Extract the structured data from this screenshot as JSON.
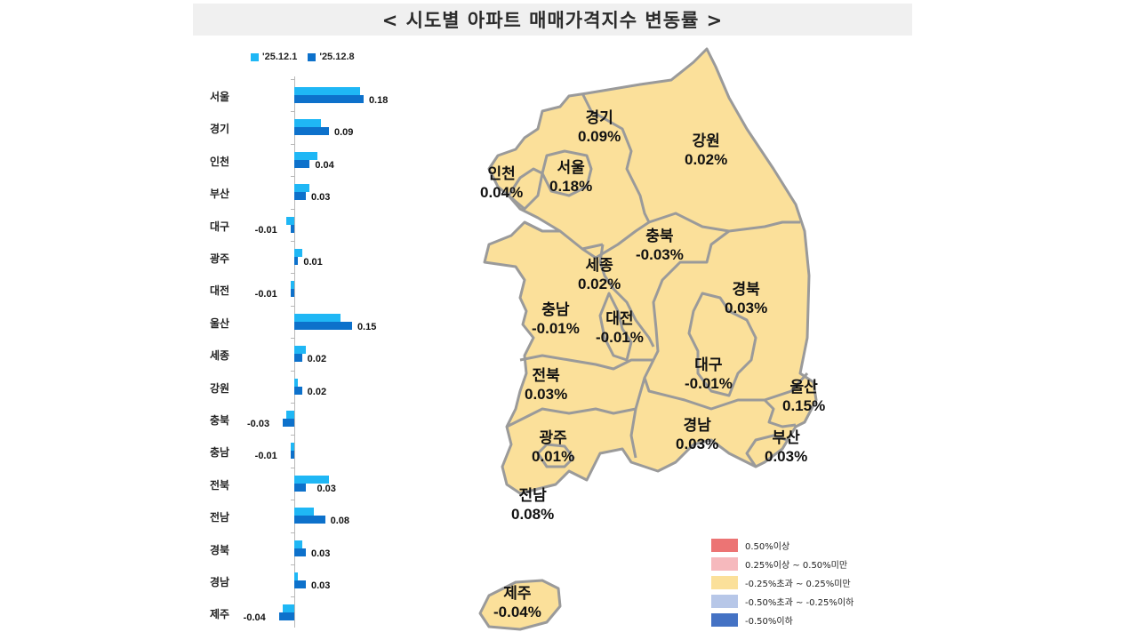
{
  "title": "< 시도별 아파트 매매가격지수 변동률 >",
  "legend_top": [
    {
      "label": "'25.12.1",
      "color": "#1fb7f5"
    },
    {
      "label": "'25.12.8",
      "color": "#0d71cb"
    }
  ],
  "chart_data": {
    "type": "bar",
    "orientation": "horizontal",
    "title": "시도별 아파트 매매가격지수 변동률",
    "xlabel": "",
    "ylabel": "",
    "categories": [
      "서울",
      "경기",
      "인천",
      "부산",
      "대구",
      "광주",
      "대전",
      "울산",
      "세종",
      "강원",
      "충북",
      "충남",
      "전북",
      "전남",
      "경북",
      "경남",
      "제주"
    ],
    "series": [
      {
        "name": "'25.12.1",
        "color": "#1fb7f5",
        "values": [
          0.17,
          0.07,
          0.06,
          0.04,
          -0.02,
          0.02,
          -0.01,
          0.12,
          0.03,
          0.01,
          -0.02,
          -0.01,
          0.09,
          0.05,
          0.02,
          0.01,
          -0.03
        ]
      },
      {
        "name": "'25.12.8",
        "color": "#0d71cb",
        "values": [
          0.18,
          0.09,
          0.04,
          0.03,
          -0.01,
          0.01,
          -0.01,
          0.15,
          0.02,
          0.02,
          -0.03,
          -0.01,
          0.03,
          0.08,
          0.03,
          0.03,
          -0.04
        ]
      }
    ],
    "data_labels": [
      "0.18",
      "0.09",
      "0.04",
      "0.03",
      "-0.01",
      "0.01",
      "-0.01",
      "0.15",
      "0.02",
      "0.02",
      "-0.03",
      "-0.01",
      "0.03",
      "0.08",
      "0.03",
      "0.03",
      "-0.04"
    ],
    "legend_position": "top",
    "grid": false
  },
  "map": {
    "regions": [
      {
        "name": "경기",
        "value": "0.09%"
      },
      {
        "name": "강원",
        "value": "0.02%"
      },
      {
        "name": "인천",
        "value": "0.04%"
      },
      {
        "name": "서울",
        "value": "0.18%"
      },
      {
        "name": "충북",
        "value": "-0.03%"
      },
      {
        "name": "세종",
        "value": "0.02%"
      },
      {
        "name": "경북",
        "value": "0.03%"
      },
      {
        "name": "충남",
        "value": "-0.01%"
      },
      {
        "name": "대전",
        "value": "-0.01%"
      },
      {
        "name": "전북",
        "value": "0.03%"
      },
      {
        "name": "대구",
        "value": "-0.01%"
      },
      {
        "name": "울산",
        "value": "0.15%"
      },
      {
        "name": "광주",
        "value": "0.01%"
      },
      {
        "name": "경남",
        "value": "0.03%"
      },
      {
        "name": "부산",
        "value": "0.03%"
      },
      {
        "name": "전남",
        "value": "0.08%"
      },
      {
        "name": "제주",
        "value": "-0.04%"
      }
    ],
    "fill_color": "#fbe09a",
    "border_color": "#9a9a9a"
  },
  "map_legend": [
    {
      "label": "0.50%이상",
      "color": "#ec7474"
    },
    {
      "label": "0.25%이상 ~ 0.50%미만",
      "color": "#f6b9bd"
    },
    {
      "label": "-0.25%초과 ~ 0.25%미만",
      "color": "#fbe09a"
    },
    {
      "label": "-0.50%초과 ~ -0.25%이하",
      "color": "#b7c7e8"
    },
    {
      "label": "-0.50%이하",
      "color": "#4472c4"
    }
  ]
}
